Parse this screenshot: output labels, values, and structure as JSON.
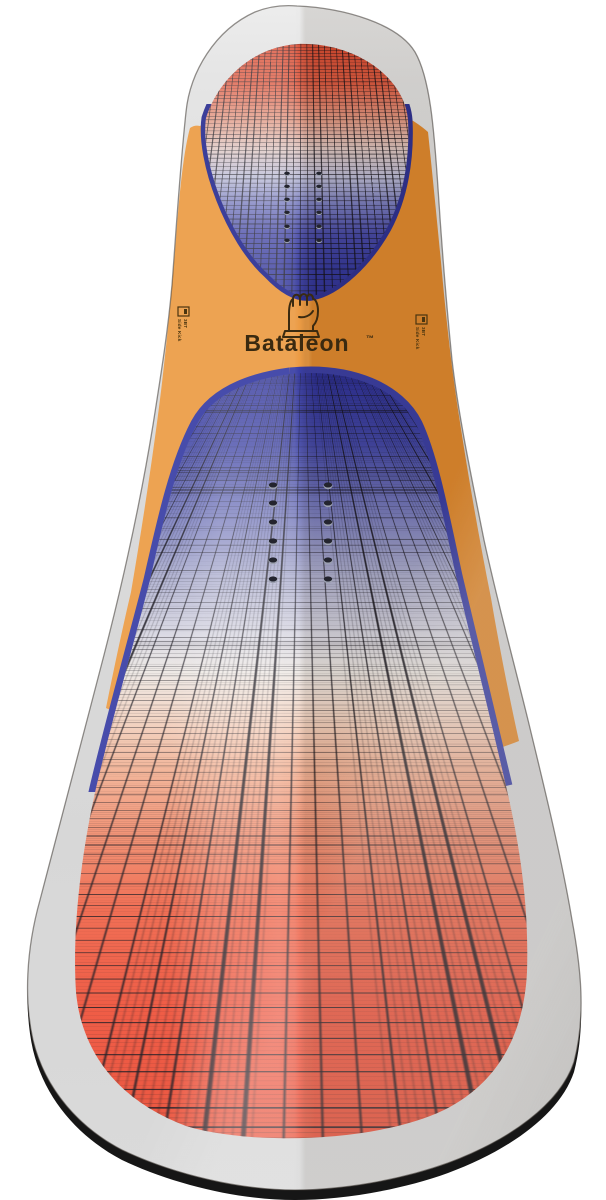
{
  "product": {
    "brand": "Bataleon",
    "trademark": "™",
    "item": "snowboard deck — top sheet, 3D product view"
  },
  "logo": {
    "fist_icon": "bataleon-fist-logo",
    "wordmark": "Bataleon"
  },
  "side_labels": {
    "left": {
      "icon": "3bt-logo",
      "line1": "3BT",
      "line2": "Side Kick"
    },
    "right": {
      "icon": "3bt-logo",
      "line1": "3BT",
      "line2": "Side Kick"
    }
  },
  "colors": {
    "background": "#FFFFFF",
    "topsheet_grey": "#D9D9D9",
    "edge_black": "#161616",
    "orange_left": "#EC9C45",
    "orange_right": "#E18A2F",
    "blue_border": "#3A3FA5",
    "grid_blue": "#2B2F99",
    "grid_white": "#EDE8E4",
    "grid_red": "#E94B33",
    "logo_ink": "#3A2A10"
  },
  "inserts": {
    "packs": 2,
    "columns_per_pack": 2,
    "rows_per_pack": 6,
    "near_pack": {
      "cols": [
        273,
        328
      ],
      "rows": [
        486,
        504,
        523,
        542,
        561,
        580
      ],
      "rx": 4.5,
      "ry": 3.2
    },
    "far_pack": {
      "cols": [
        287,
        319
      ],
      "rows": [
        174,
        187,
        200,
        213,
        227,
        241
      ],
      "rx": 3.0,
      "ry": 2.1
    }
  }
}
